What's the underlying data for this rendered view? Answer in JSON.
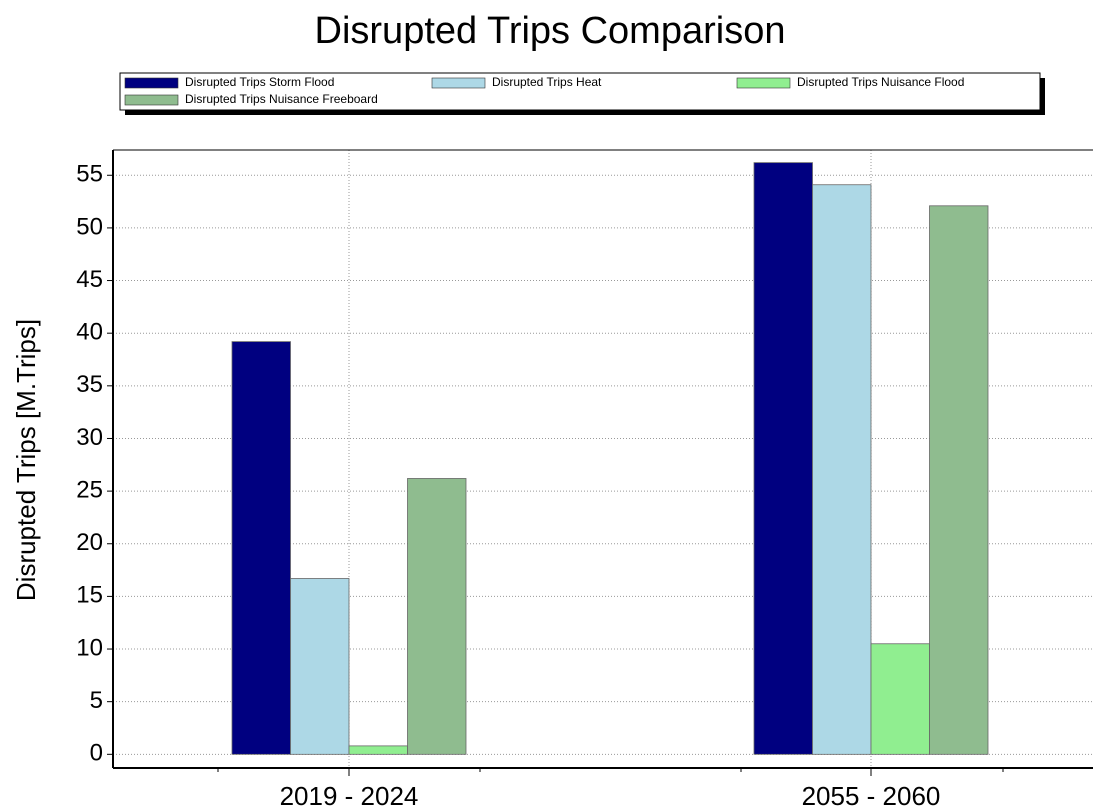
{
  "chart_data": {
    "type": "bar",
    "title": "Disrupted Trips Comparison",
    "y_label": "Disrupted Trips [M.Trips]",
    "categories": [
      "2019 - 2024",
      "2055 - 2060"
    ],
    "series": [
      {
        "name": "Disrupted Trips Storm Flood",
        "color": "#000080",
        "values": [
          39.2,
          56.2
        ]
      },
      {
        "name": "Disrupted Trips Heat",
        "color": "#add8e6",
        "values": [
          16.7,
          54.1
        ]
      },
      {
        "name": "Disrupted Trips Nuisance Flood",
        "color": "#90ee90",
        "values": [
          0.8,
          10.5
        ]
      },
      {
        "name": "Disrupted Trips Nuisance Freeboard",
        "color": "#8fbc8f",
        "values": [
          26.2,
          52.1
        ]
      }
    ],
    "ylim": [
      -1.3,
      57.4
    ],
    "yticks": [
      0,
      5,
      10,
      15,
      20,
      25,
      30,
      35,
      40,
      45,
      50,
      55
    ],
    "grid": true
  }
}
